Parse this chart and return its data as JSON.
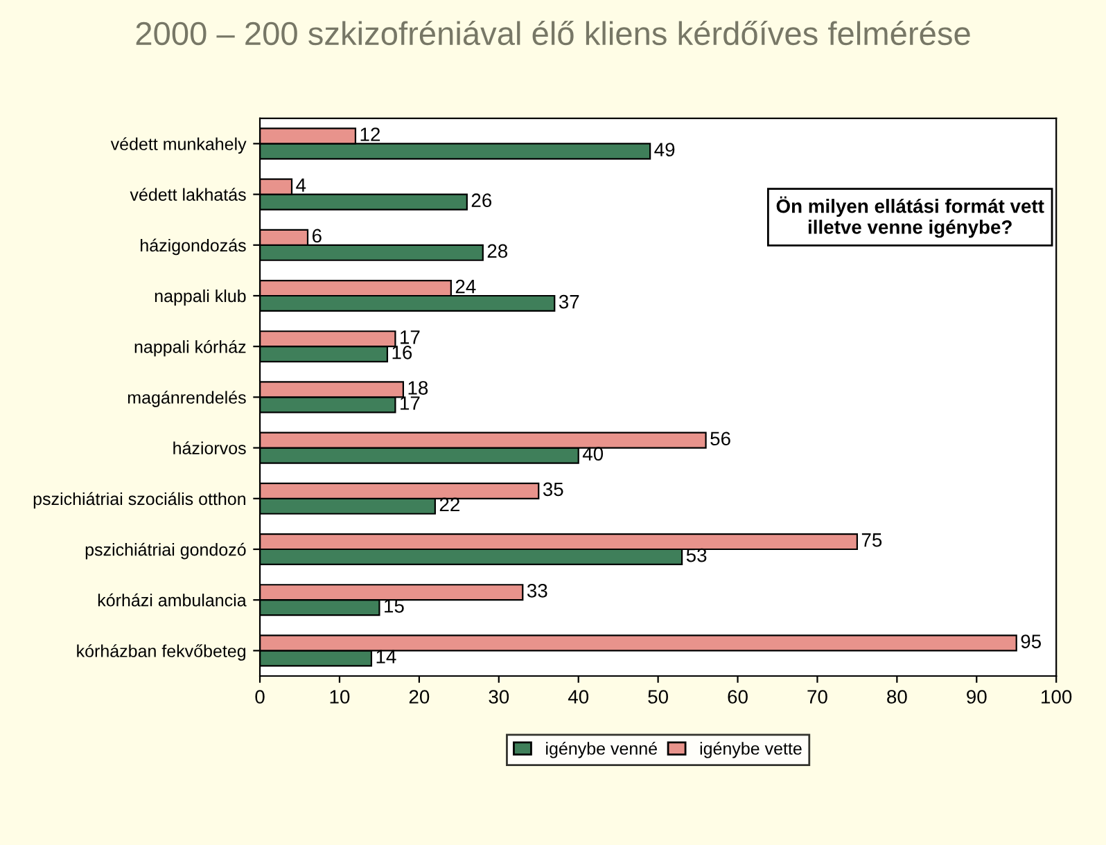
{
  "chart_data": {
    "type": "bar",
    "orientation": "horizontal",
    "title": "2000 – 200 szkizofréniával élő kliens kérdőíves felmérése",
    "categories": [
      "védett munkahely",
      "védett lakhatás",
      "házigondozás",
      "nappali klub",
      "nappali kórház",
      "magánrendelés",
      "háziorvos",
      "pszichiátriai szociális otthon",
      "pszichiátriai gondozó",
      "kórházi ambulancia",
      "kórházban fekvőbeteg"
    ],
    "series": [
      {
        "name": "igénybe venné",
        "color": "#3f7f5a",
        "values": [
          49,
          26,
          28,
          37,
          16,
          17,
          40,
          22,
          53,
          15,
          14
        ]
      },
      {
        "name": "igénybe vette",
        "color": "#e8938c",
        "values": [
          12,
          4,
          6,
          24,
          17,
          18,
          56,
          35,
          75,
          33,
          95
        ]
      }
    ],
    "xlim": [
      0,
      100
    ],
    "xticks": [
      0,
      10,
      20,
      30,
      40,
      50,
      60,
      70,
      80,
      90,
      100
    ],
    "data_labels": true,
    "legend": "bottom",
    "grid": false,
    "annotations": [
      "Ön milyen ellátási formát vett\nilletve venne igénybe?"
    ]
  }
}
